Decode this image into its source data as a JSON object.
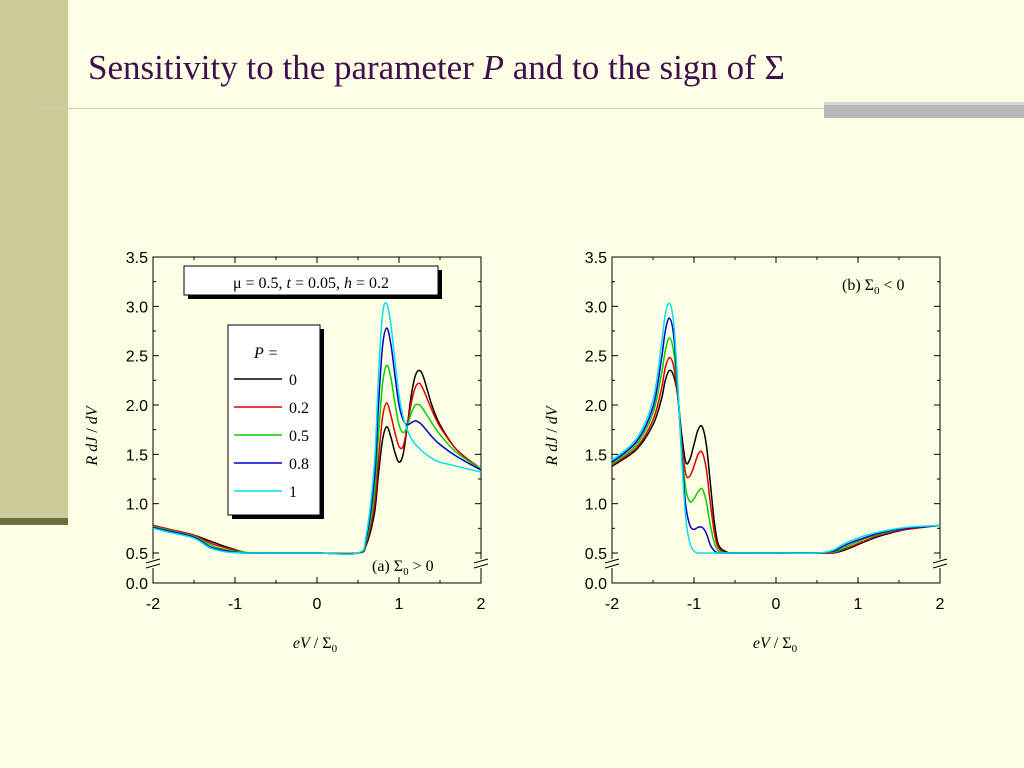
{
  "slide": {
    "title_prefix": "Sensitivity to the parameter",
    "title_symbol": "P",
    "title_suffix": "and to the sign of Σ"
  },
  "chart_data": [
    {
      "type": "line",
      "panel_label": "(a) Σ0 > 0",
      "panel_label_text": "(a) Σ",
      "panel_label_sub": "0",
      "panel_label_rel": " > 0",
      "params_box": {
        "mu": "μ = 0.5, ",
        "t_sym": "t",
        "t_val": " = 0.05, ",
        "h_sym": "h",
        "h_val": " = 0.2"
      },
      "legend_title": "P =",
      "xlabel": "eV / Σ0",
      "ylabel": "R dJ / dV",
      "xlim": [
        -2,
        2
      ],
      "ylim": [
        0,
        3.5
      ],
      "axis_break": [
        0.0,
        0.5
      ],
      "xticks": [
        "-2",
        "-1",
        "0",
        "1",
        "2"
      ],
      "yticks": [
        "0.0",
        "0.5",
        "1.0",
        "1.5",
        "2.0",
        "2.5",
        "3.0",
        "3.5"
      ],
      "series": [
        {
          "name": "0",
          "color": "#000000",
          "x": [
            -2,
            -1.8,
            -1.5,
            -1.3,
            -1.1,
            -0.9,
            -0.8,
            -0.5,
            0,
            0.5,
            0.6,
            0.7,
            0.75,
            0.8,
            0.85,
            0.9,
            0.95,
            1.0,
            1.05,
            1.1,
            1.15,
            1.2,
            1.25,
            1.3,
            1.4,
            1.5,
            1.7,
            2.0
          ],
          "y": [
            0.78,
            0.74,
            0.68,
            0.62,
            0.56,
            0.51,
            0.5,
            0.5,
            0.5,
            0.5,
            0.58,
            0.9,
            1.3,
            1.65,
            1.78,
            1.68,
            1.52,
            1.42,
            1.5,
            1.78,
            2.1,
            2.3,
            2.35,
            2.28,
            2.0,
            1.8,
            1.55,
            1.35
          ]
        },
        {
          "name": "0.2",
          "color": "#E00000",
          "x": [
            -2,
            -1.8,
            -1.5,
            -1.3,
            -1.1,
            -0.9,
            -0.8,
            -0.5,
            0,
            0.5,
            0.6,
            0.7,
            0.75,
            0.8,
            0.85,
            0.9,
            0.95,
            1.0,
            1.05,
            1.1,
            1.15,
            1.2,
            1.25,
            1.3,
            1.4,
            1.5,
            1.7,
            2.0
          ],
          "y": [
            0.78,
            0.74,
            0.68,
            0.6,
            0.55,
            0.51,
            0.5,
            0.5,
            0.5,
            0.5,
            0.6,
            0.98,
            1.45,
            1.88,
            2.02,
            1.9,
            1.72,
            1.58,
            1.58,
            1.78,
            2.02,
            2.18,
            2.22,
            2.15,
            1.95,
            1.78,
            1.55,
            1.35
          ]
        },
        {
          "name": "0.5",
          "color": "#00D000",
          "x": [
            -2,
            -1.8,
            -1.5,
            -1.3,
            -1.1,
            -0.9,
            -0.8,
            -0.5,
            0,
            0.5,
            0.6,
            0.7,
            0.75,
            0.8,
            0.85,
            0.9,
            0.95,
            1.0,
            1.05,
            1.1,
            1.15,
            1.2,
            1.25,
            1.3,
            1.4,
            1.5,
            1.7,
            2.0
          ],
          "y": [
            0.77,
            0.73,
            0.67,
            0.58,
            0.53,
            0.51,
            0.5,
            0.5,
            0.5,
            0.5,
            0.62,
            1.1,
            1.7,
            2.22,
            2.4,
            2.28,
            2.02,
            1.8,
            1.72,
            1.78,
            1.92,
            2.0,
            2.0,
            1.95,
            1.82,
            1.7,
            1.52,
            1.35
          ]
        },
        {
          "name": "0.8",
          "color": "#0000C8",
          "x": [
            -2,
            -1.8,
            -1.5,
            -1.3,
            -1.1,
            -0.9,
            -0.8,
            -0.5,
            0,
            0.5,
            0.6,
            0.7,
            0.75,
            0.8,
            0.85,
            0.9,
            0.95,
            1.0,
            1.05,
            1.1,
            1.15,
            1.2,
            1.25,
            1.3,
            1.4,
            1.5,
            1.7,
            2.0
          ],
          "y": [
            0.76,
            0.72,
            0.66,
            0.56,
            0.52,
            0.5,
            0.5,
            0.5,
            0.5,
            0.5,
            0.65,
            1.25,
            2.0,
            2.6,
            2.78,
            2.62,
            2.3,
            2.0,
            1.85,
            1.8,
            1.82,
            1.84,
            1.82,
            1.78,
            1.68,
            1.6,
            1.48,
            1.34
          ]
        },
        {
          "name": "1",
          "color": "#00E0F0",
          "x": [
            -2,
            -1.8,
            -1.5,
            -1.3,
            -1.1,
            -0.9,
            -0.8,
            -0.5,
            0,
            0.5,
            0.6,
            0.7,
            0.75,
            0.8,
            0.85,
            0.9,
            0.95,
            1.0,
            1.05,
            1.1,
            1.15,
            1.2,
            1.25,
            1.3,
            1.4,
            1.5,
            1.7,
            2.0
          ],
          "y": [
            0.75,
            0.71,
            0.65,
            0.55,
            0.51,
            0.5,
            0.5,
            0.5,
            0.5,
            0.5,
            0.68,
            1.4,
            2.3,
            2.92,
            3.03,
            2.82,
            2.45,
            2.1,
            1.88,
            1.75,
            1.66,
            1.6,
            1.56,
            1.52,
            1.46,
            1.42,
            1.38,
            1.32
          ]
        }
      ]
    },
    {
      "type": "line",
      "panel_label": "(b) Σ0 < 0",
      "panel_label_text": "(b) Σ",
      "panel_label_sub": "0",
      "panel_label_rel": " < 0",
      "xlabel": "eV / Σ0",
      "ylabel": "R dJ / dV",
      "xlim": [
        -2,
        2
      ],
      "ylim": [
        0,
        3.5
      ],
      "axis_break": [
        0.0,
        0.5
      ],
      "xticks": [
        "-2",
        "-1",
        "0",
        "1",
        "2"
      ],
      "yticks": [
        "0.0",
        "0.5",
        "1.0",
        "1.5",
        "2.0",
        "2.5",
        "3.0",
        "3.5"
      ],
      "series": [
        {
          "name": "0",
          "color": "#000000",
          "x": [
            -2,
            -1.7,
            -1.5,
            -1.4,
            -1.35,
            -1.3,
            -1.25,
            -1.2,
            -1.15,
            -1.1,
            -1.05,
            -1.0,
            -0.95,
            -0.9,
            -0.85,
            -0.8,
            -0.75,
            -0.7,
            -0.6,
            -0.5,
            0,
            0.5,
            0.7,
            0.8,
            0.9,
            1.1,
            1.3,
            1.6,
            2.0
          ],
          "y": [
            1.38,
            1.55,
            1.8,
            2.05,
            2.25,
            2.35,
            2.3,
            2.1,
            1.7,
            1.42,
            1.45,
            1.6,
            1.75,
            1.78,
            1.6,
            1.2,
            0.8,
            0.58,
            0.51,
            0.5,
            0.5,
            0.5,
            0.5,
            0.52,
            0.55,
            0.62,
            0.68,
            0.74,
            0.78
          ]
        },
        {
          "name": "0.2",
          "color": "#E00000",
          "x": [
            -2,
            -1.7,
            -1.5,
            -1.4,
            -1.35,
            -1.3,
            -1.25,
            -1.2,
            -1.15,
            -1.1,
            -1.05,
            -1.0,
            -0.95,
            -0.9,
            -0.85,
            -0.8,
            -0.75,
            -0.7,
            -0.6,
            -0.5,
            0,
            0.5,
            0.7,
            0.8,
            0.9,
            1.1,
            1.3,
            1.6,
            2.0
          ],
          "y": [
            1.39,
            1.57,
            1.85,
            2.15,
            2.38,
            2.48,
            2.4,
            2.1,
            1.62,
            1.3,
            1.28,
            1.38,
            1.5,
            1.52,
            1.35,
            1.0,
            0.7,
            0.55,
            0.5,
            0.5,
            0.5,
            0.5,
            0.5,
            0.53,
            0.56,
            0.63,
            0.69,
            0.74,
            0.78
          ]
        },
        {
          "name": "0.5",
          "color": "#00D000",
          "x": [
            -2,
            -1.7,
            -1.5,
            -1.4,
            -1.35,
            -1.3,
            -1.25,
            -1.2,
            -1.15,
            -1.1,
            -1.05,
            -1.0,
            -0.95,
            -0.9,
            -0.85,
            -0.8,
            -0.75,
            -0.7,
            -0.6,
            -0.5,
            0,
            0.5,
            0.7,
            0.8,
            0.9,
            1.1,
            1.3,
            1.6,
            2.0
          ],
          "y": [
            1.4,
            1.6,
            1.92,
            2.3,
            2.55,
            2.68,
            2.55,
            2.15,
            1.55,
            1.15,
            1.02,
            1.05,
            1.12,
            1.15,
            1.02,
            0.78,
            0.6,
            0.52,
            0.5,
            0.5,
            0.5,
            0.5,
            0.51,
            0.54,
            0.58,
            0.65,
            0.7,
            0.75,
            0.78
          ]
        },
        {
          "name": "0.8",
          "color": "#0000C8",
          "x": [
            -2,
            -1.7,
            -1.5,
            -1.4,
            -1.35,
            -1.3,
            -1.25,
            -1.2,
            -1.15,
            -1.1,
            -1.05,
            -1.0,
            -0.95,
            -0.9,
            -0.85,
            -0.8,
            -0.75,
            -0.7,
            -0.6,
            -0.5,
            0,
            0.5,
            0.7,
            0.8,
            0.9,
            1.1,
            1.3,
            1.6,
            2.0
          ],
          "y": [
            1.42,
            1.63,
            1.98,
            2.45,
            2.75,
            2.88,
            2.72,
            2.2,
            1.5,
            0.98,
            0.78,
            0.74,
            0.76,
            0.76,
            0.7,
            0.58,
            0.52,
            0.5,
            0.5,
            0.5,
            0.5,
            0.5,
            0.52,
            0.56,
            0.6,
            0.66,
            0.71,
            0.75,
            0.78
          ]
        },
        {
          "name": "1",
          "color": "#00E0F0",
          "x": [
            -2,
            -1.7,
            -1.5,
            -1.4,
            -1.35,
            -1.3,
            -1.25,
            -1.2,
            -1.15,
            -1.1,
            -1.05,
            -1.0,
            -0.95,
            -0.9,
            -0.85,
            -0.8,
            -0.75,
            -0.7,
            -0.6,
            -0.5,
            0,
            0.5,
            0.7,
            0.8,
            0.9,
            1.1,
            1.3,
            1.6,
            2.0
          ],
          "y": [
            1.44,
            1.66,
            2.05,
            2.6,
            2.92,
            3.03,
            2.85,
            2.25,
            1.45,
            0.85,
            0.6,
            0.52,
            0.5,
            0.5,
            0.5,
            0.5,
            0.5,
            0.5,
            0.5,
            0.5,
            0.5,
            0.5,
            0.53,
            0.58,
            0.62,
            0.68,
            0.72,
            0.76,
            0.78
          ]
        }
      ]
    }
  ]
}
